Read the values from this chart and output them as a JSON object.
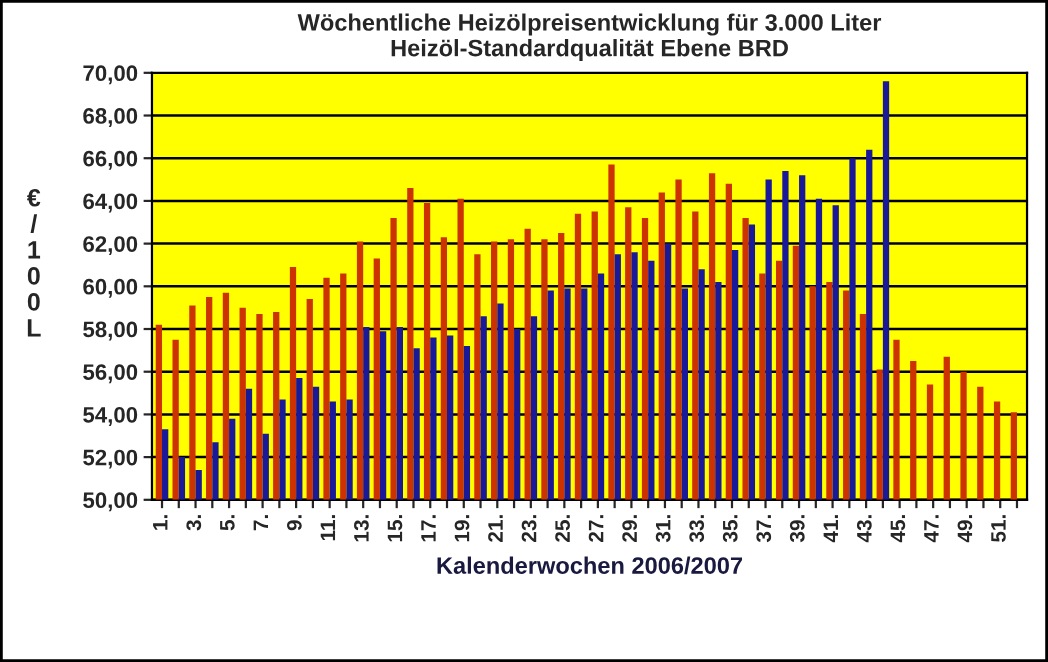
{
  "chart_data": {
    "type": "bar",
    "title": "Wöchentliche Heizölpreisentwicklung für 3.000 Liter\nHeizöl-Standardqualität Ebene BRD",
    "xlabel": "Kalenderwochen 2006/2007",
    "ylabel": "€/100L",
    "categories": [
      "1.",
      null,
      "3.",
      null,
      "5.",
      null,
      "7.",
      null,
      "9.",
      null,
      "11.",
      null,
      "13.",
      null,
      "15.",
      null,
      "17.",
      null,
      "19.",
      null,
      "21.",
      null,
      "23.",
      null,
      "25.",
      null,
      "27.",
      null,
      "29.",
      null,
      "31.",
      null,
      "33.",
      null,
      "35.",
      null,
      "37.",
      null,
      "39.",
      null,
      "41.",
      null,
      "43.",
      null,
      "45.",
      null,
      "47.",
      null,
      "49.",
      null,
      "51.",
      null
    ],
    "series": [
      {
        "color": "#cc3300",
        "values": [
          58.2,
          57.5,
          59.1,
          59.5,
          59.7,
          59.0,
          58.7,
          58.8,
          60.9,
          59.4,
          60.4,
          60.6,
          62.1,
          61.3,
          63.2,
          64.6,
          63.9,
          62.3,
          64.1,
          61.5,
          62.1,
          62.2,
          62.7,
          62.2,
          62.5,
          63.4,
          63.5,
          65.7,
          63.7,
          63.2,
          64.4,
          65.0,
          63.5,
          65.3,
          64.8,
          63.2,
          60.6,
          61.2,
          61.9,
          60.0,
          60.2,
          59.8,
          58.7,
          56.1,
          57.5,
          56.5,
          55.4,
          56.7,
          56.0,
          55.3,
          54.6,
          54.1
        ]
      },
      {
        "color": "#1a1a99",
        "values": [
          53.3,
          52.0,
          51.4,
          52.7,
          53.8,
          55.2,
          53.1,
          54.7,
          55.7,
          55.3,
          54.6,
          54.7,
          58.1,
          57.9,
          58.1,
          57.1,
          57.6,
          57.7,
          57.2,
          58.6,
          59.2,
          58.0,
          58.6,
          59.8,
          59.9,
          59.9,
          60.6,
          61.5,
          61.6,
          61.2,
          62.0,
          59.9,
          60.8,
          60.2,
          61.7,
          62.9,
          65.0,
          65.4,
          65.2,
          64.1,
          63.8,
          66.0,
          66.4,
          69.6,
          null,
          null,
          null,
          null,
          null,
          null,
          null,
          null
        ]
      }
    ],
    "ylim": [
      50,
      70
    ],
    "yticks": [
      {
        "value": 50,
        "label": "50,00"
      },
      {
        "value": 52,
        "label": "52,00"
      },
      {
        "value": 54,
        "label": "54,00"
      },
      {
        "value": 56,
        "label": "56,00"
      },
      {
        "value": 58,
        "label": "58,00"
      },
      {
        "value": 60,
        "label": "60,00"
      },
      {
        "value": 62,
        "label": "62,00"
      },
      {
        "value": 64,
        "label": "64,00"
      },
      {
        "value": 66,
        "label": "66,00"
      },
      {
        "value": 68,
        "label": "68,00"
      },
      {
        "value": 70,
        "label": "70,00"
      }
    ],
    "grid": "y",
    "legend": false
  }
}
